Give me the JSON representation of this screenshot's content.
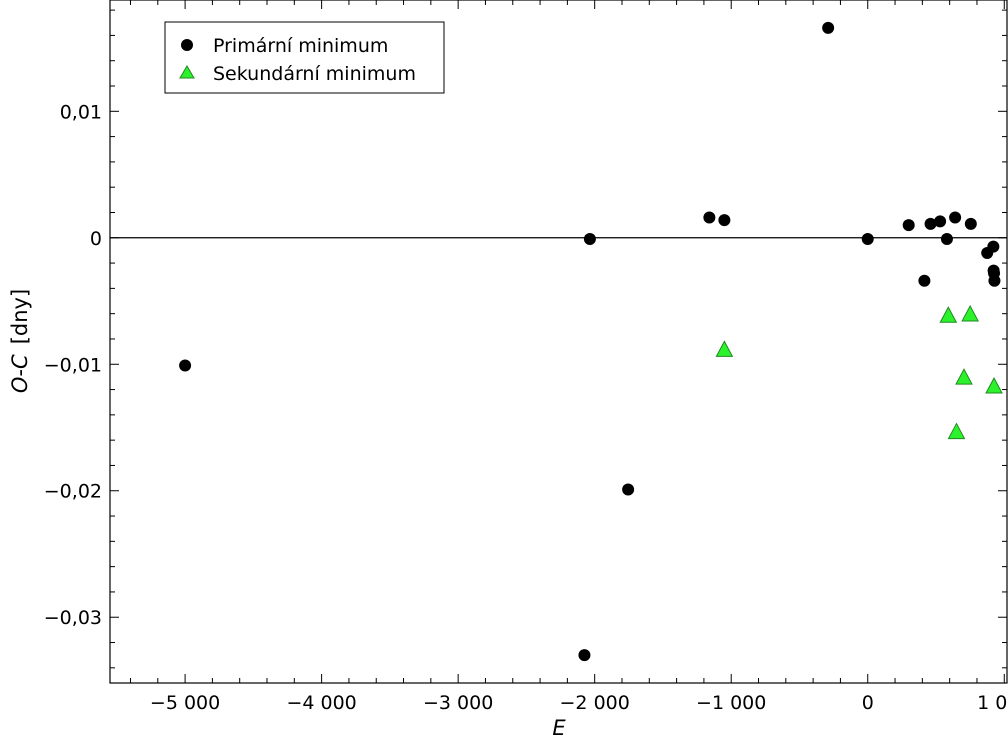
{
  "chart_data": {
    "type": "scatter",
    "xlabel": "E",
    "ylabel": "O-C",
    "ylabel_unit": "[dny]",
    "xlim": [
      -5550,
      1020
    ],
    "ylim": [
      -0.0352,
      0.0188
    ],
    "xticks": [
      -5000,
      -4000,
      -3000,
      -2000,
      -1000,
      0,
      1000
    ],
    "xtick_labels": [
      "−5 000",
      "−4 000",
      "−3 000",
      "−2 000",
      "−1 000",
      "0",
      "1 000"
    ],
    "yticks": [
      0.01,
      0,
      -0.01,
      -0.02,
      -0.03
    ],
    "ytick_labels": [
      "0,01",
      "0",
      "−0,01",
      "−0,02",
      "−0,03"
    ],
    "zero_line": true,
    "grid": false,
    "legend_position": "top-left",
    "series": [
      {
        "name": "Primární minimum",
        "marker": "circle",
        "color": "#000000",
        "points": [
          {
            "x": -5000,
            "y": -0.0101
          },
          {
            "x": -2075,
            "y": -0.033
          },
          {
            "x": -2035,
            "y": -0.0001
          },
          {
            "x": -1755,
            "y": -0.0199
          },
          {
            "x": -1160,
            "y": 0.0016
          },
          {
            "x": -1050,
            "y": 0.0014
          },
          {
            "x": -290,
            "y": 0.0166
          },
          {
            "x": 0,
            "y": -0.0001
          },
          {
            "x": 300,
            "y": 0.001
          },
          {
            "x": 415,
            "y": -0.0034
          },
          {
            "x": 460,
            "y": 0.0011
          },
          {
            "x": 530,
            "y": 0.0013
          },
          {
            "x": 580,
            "y": -0.0001
          },
          {
            "x": 640,
            "y": 0.0016
          },
          {
            "x": 755,
            "y": 0.0011
          },
          {
            "x": 875,
            "y": -0.0012
          },
          {
            "x": 920,
            "y": -0.0007
          },
          {
            "x": 922,
            "y": -0.0026
          },
          {
            "x": 925,
            "y": -0.0028
          },
          {
            "x": 928,
            "y": -0.0034
          }
        ]
      },
      {
        "name": "Sekundární minimum",
        "marker": "triangle",
        "color": "#2cf22c",
        "points": [
          {
            "x": -1050,
            "y": -0.0089
          },
          {
            "x": 590,
            "y": -0.0062
          },
          {
            "x": 650,
            "y": -0.0154
          },
          {
            "x": 705,
            "y": -0.0111
          },
          {
            "x": 750,
            "y": -0.0061
          },
          {
            "x": 925,
            "y": -0.0118
          }
        ]
      }
    ]
  }
}
